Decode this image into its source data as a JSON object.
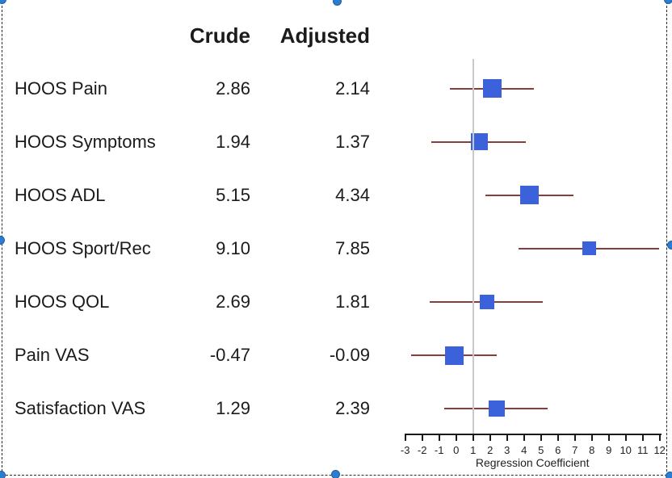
{
  "selection": {
    "border_color": "#2a2a2a",
    "handle_color": "#2d7cd0",
    "handles": [
      "top-left",
      "top-center",
      "top-right",
      "middle-left",
      "middle-right",
      "bottom-left",
      "bottom-center",
      "bottom-right"
    ]
  },
  "chart_data": {
    "type": "forest",
    "columns": {
      "crude_header": "Crude",
      "adjusted_header": "Adjusted"
    },
    "rows": [
      {
        "label": "HOOS Pain",
        "crude": "2.86",
        "adjusted": "2.14",
        "estimate": 2.14,
        "ci_low": -0.35,
        "ci_high": 4.6,
        "marker_size": 23
      },
      {
        "label": "HOOS Symptoms",
        "crude": "1.94",
        "adjusted": "1.37",
        "estimate": 1.37,
        "ci_low": -1.45,
        "ci_high": 4.1,
        "marker_size": 21
      },
      {
        "label": "HOOS ADL",
        "crude": "5.15",
        "adjusted": "4.34",
        "estimate": 4.34,
        "ci_low": 1.75,
        "ci_high": 6.9,
        "marker_size": 23
      },
      {
        "label": "HOOS Sport/Rec",
        "crude": "9.10",
        "adjusted": "7.85",
        "estimate": 7.85,
        "ci_low": 3.7,
        "ci_high": 11.95,
        "marker_size": 17
      },
      {
        "label": "HOOS QOL",
        "crude": "2.69",
        "adjusted": "1.81",
        "estimate": 1.81,
        "ci_low": -1.55,
        "ci_high": 5.1,
        "marker_size": 18
      },
      {
        "label": "Pain VAS",
        "crude": "-0.47",
        "adjusted": "-0.09",
        "estimate": -0.09,
        "ci_low": -2.65,
        "ci_high": 2.4,
        "marker_size": 23
      },
      {
        "label": "Satisfaction VAS",
        "crude": "1.29",
        "adjusted": "2.39",
        "estimate": 2.39,
        "ci_low": -0.7,
        "ci_high": 5.4,
        "marker_size": 20
      }
    ],
    "axis": {
      "label": "Regression Coefficient",
      "min": -3,
      "max": 12,
      "ticks": [
        "-3",
        "-2",
        "-1",
        "0",
        "1",
        "2",
        "3",
        "4",
        "5",
        "6",
        "7",
        "8",
        "9",
        "10",
        "11",
        "12"
      ],
      "reference_line_x": 1
    },
    "colors": {
      "marker": "#3c62db",
      "ci_line": "#8b3d3d",
      "reference_line": "#c9c9c9",
      "axis": "#1a1a1a"
    }
  }
}
